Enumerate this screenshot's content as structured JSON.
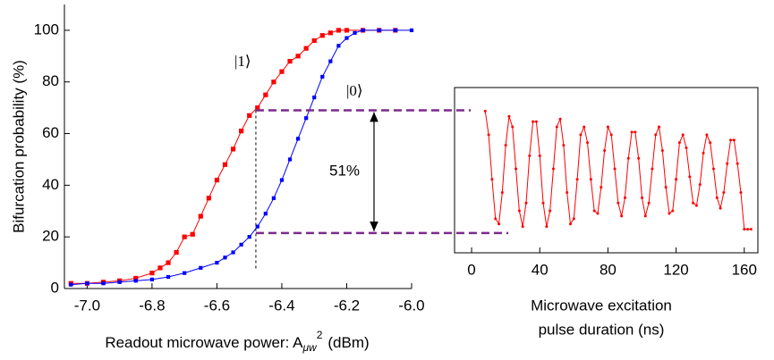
{
  "chart_data": [
    {
      "type": "line",
      "ylabel": "Bifurcation probability (%)",
      "xlabel": {
        "text": "Readout microwave power: A",
        "sub": "μw",
        "sup": "2",
        "unit": "(dBm)"
      },
      "xlim": [
        -7.07,
        -6.0
      ],
      "xticks": [
        {
          "value": -7.0,
          "label": "-7.0"
        },
        -6.8,
        -6.6,
        -6.4,
        -6.2,
        {
          "value": -6.0,
          "label": "-6.0"
        }
      ],
      "ylim": [
        0,
        110
      ],
      "yticks": [
        0,
        20,
        40,
        60,
        80,
        100
      ],
      "series": [
        {
          "name": "|1⟩",
          "color": "#ff0000",
          "x": [
            -7.05,
            -7.0,
            -6.95,
            -6.9,
            -6.85,
            -6.8,
            -6.775,
            -6.75,
            -6.725,
            -6.7,
            -6.675,
            -6.65,
            -6.625,
            -6.6,
            -6.575,
            -6.55,
            -6.525,
            -6.5,
            -6.475,
            -6.45,
            -6.425,
            -6.4,
            -6.375,
            -6.35,
            -6.325,
            -6.3,
            -6.275,
            -6.25,
            -6.225,
            -6.2,
            -6.15,
            -6.1,
            -6.05
          ],
          "values": [
            2,
            2,
            2.5,
            3,
            4,
            6,
            8,
            10,
            14,
            20,
            21,
            28,
            35,
            42,
            48,
            54,
            61,
            67,
            70,
            75,
            80,
            84,
            88,
            90,
            93,
            96,
            98,
            99,
            100,
            100,
            100,
            100,
            100
          ]
        },
        {
          "name": "|0⟩",
          "color": "#0000ff",
          "x": [
            -7.05,
            -7.0,
            -6.95,
            -6.9,
            -6.85,
            -6.8,
            -6.75,
            -6.7,
            -6.65,
            -6.6,
            -6.575,
            -6.55,
            -6.525,
            -6.5,
            -6.475,
            -6.45,
            -6.425,
            -6.4,
            -6.375,
            -6.35,
            -6.325,
            -6.3,
            -6.275,
            -6.25,
            -6.225,
            -6.2,
            -6.175,
            -6.15,
            -6.1,
            -6.05,
            -6.0
          ],
          "values": [
            1.5,
            2,
            2,
            2.5,
            3,
            3.5,
            4.5,
            6,
            8,
            10,
            12,
            14,
            17,
            20,
            24,
            29,
            35,
            42,
            50,
            58,
            66,
            74,
            82,
            88,
            94,
            97,
            99,
            100,
            100,
            100,
            100
          ]
        }
      ],
      "hlines": [
        69,
        21.5
      ],
      "vline": -6.48,
      "annotation": "51%"
    },
    {
      "type": "line",
      "xlabel": [
        "Microwave excitation",
        "pulse duration (ns)"
      ],
      "xlim": [
        -10,
        168
      ],
      "xticks": [
        0,
        40,
        80,
        120,
        160
      ],
      "ylim": [
        15,
        78
      ],
      "series": [
        {
          "color": "#ff0000",
          "x": [
            8,
            10,
            12,
            14,
            16,
            18,
            20,
            22,
            24,
            26,
            28,
            30,
            32,
            34,
            36,
            38,
            40,
            42,
            44,
            46,
            48,
            50,
            52,
            54,
            56,
            58,
            60,
            62,
            64,
            66,
            68,
            70,
            72,
            74,
            76,
            78,
            80,
            82,
            84,
            86,
            88,
            90,
            92,
            94,
            96,
            98,
            100,
            102,
            104,
            106,
            108,
            110,
            112,
            114,
            116,
            118,
            120,
            122,
            124,
            126,
            128,
            130,
            132,
            134,
            136,
            138,
            140,
            142,
            144,
            146,
            148,
            150,
            152,
            154,
            156,
            158,
            160,
            162,
            164
          ],
          "values": [
            69,
            60,
            43,
            28,
            26,
            38,
            56,
            67,
            63,
            47,
            31,
            25,
            34,
            52,
            65,
            65,
            52,
            34,
            25,
            31,
            47,
            63,
            66,
            56,
            38,
            26,
            28,
            43,
            60,
            63,
            57,
            43,
            31,
            30,
            40,
            54,
            63,
            60,
            47,
            34,
            29,
            36,
            51,
            61,
            61,
            51,
            36,
            29,
            34,
            47,
            60,
            63,
            54,
            40,
            30,
            31,
            43,
            57,
            60,
            55,
            44,
            34,
            33,
            41,
            53,
            60,
            57,
            47,
            36,
            32,
            38,
            49,
            58,
            58,
            49,
            38,
            24,
            24,
            24
          ]
        }
      ]
    }
  ]
}
